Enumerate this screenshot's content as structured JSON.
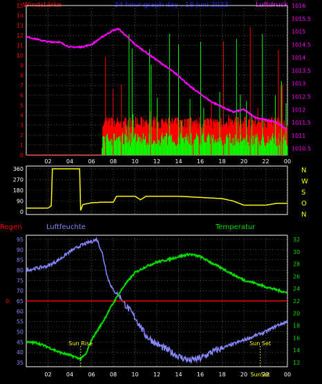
{
  "header": {
    "left_title": "Windstärke",
    "center_title": "24 hour graph day , 18 Juni 2023",
    "right_title": "Luftdruck"
  },
  "colors": {
    "wind": "#ff0000",
    "gust": "#00ff00",
    "pressure": "#ff00ff",
    "direction": "#ffff00",
    "humidity": "#8888ff",
    "temperature": "#00dd00",
    "rain": "#ff0000",
    "axis": "#ffff00"
  },
  "chart_data": [
    {
      "type": "line",
      "name": "wind-pressure",
      "title": "24 hour graph day , 18 Juni 2023",
      "x_ticks": [
        "02",
        "04",
        "06",
        "08",
        "10",
        "12",
        "14",
        "16",
        "18",
        "20",
        "22",
        "00"
      ],
      "left_axis": {
        "label": "Windstärke",
        "ticks": [
          0,
          1,
          2,
          3,
          4,
          5,
          6,
          7,
          8,
          9,
          10,
          11,
          12,
          13,
          14,
          15
        ],
        "ylim": [
          0,
          15
        ]
      },
      "right_axis": {
        "label": "Luftdruck",
        "ticks": [
          "1010.5",
          "1011",
          "1011.5",
          "1012",
          "1012.5",
          "1013",
          "1013.5",
          "1014",
          "1014.5",
          "1015",
          "1015.5",
          "1016"
        ],
        "ylim": [
          1010.25,
          1016
        ]
      },
      "series": [
        {
          "name": "Luftdruck",
          "x": [
            0,
            1,
            2,
            3,
            4,
            5,
            6,
            7,
            8,
            8.5,
            9,
            10,
            11,
            12,
            13,
            14,
            15,
            16,
            17,
            18,
            19,
            20,
            21,
            22,
            23,
            24
          ],
          "values": [
            1014.8,
            1014.7,
            1014.6,
            1014.6,
            1014.4,
            1014.4,
            1014.5,
            1014.8,
            1015.05,
            1015.1,
            1014.9,
            1014.5,
            1014.2,
            1013.9,
            1013.6,
            1013.3,
            1012.9,
            1012.6,
            1012.3,
            1012.1,
            1011.9,
            1012.0,
            1011.7,
            1011.6,
            1011.5,
            1011.2
          ]
        },
        {
          "name": "Windstärke",
          "x": [
            0,
            6.9,
            7,
            8,
            9,
            10,
            11,
            12,
            13,
            14,
            15,
            16,
            17,
            18,
            19,
            20,
            21,
            22,
            23,
            24
          ],
          "values": [
            0,
            0,
            3.5,
            3.5,
            3.5,
            3.5,
            3.5,
            3.5,
            3.5,
            3.5,
            3.5,
            3.5,
            3.5,
            3.5,
            3.5,
            3.5,
            3.5,
            3.5,
            3.5,
            3
          ]
        },
        {
          "name": "Böen",
          "x": [
            0,
            6.9,
            7,
            8,
            9,
            10,
            11,
            12,
            13,
            14,
            15,
            16,
            17,
            18,
            19,
            20,
            21,
            22,
            23,
            24
          ],
          "values": [
            0,
            0,
            1.5,
            1.5,
            1.5,
            1.5,
            1.5,
            1.5,
            1.5,
            1.5,
            1.5,
            1.5,
            1.5,
            1.5,
            1.5,
            1.5,
            1.5,
            1.5,
            1.5,
            1.5
          ]
        }
      ]
    },
    {
      "type": "line",
      "name": "wind-direction",
      "x_ticks": [
        "02",
        "04",
        "06",
        "08",
        "10",
        "12",
        "14",
        "16",
        "18",
        "20",
        "22",
        "00"
      ],
      "left_axis": {
        "ticks": [
          0,
          90,
          180,
          270,
          360
        ],
        "ylim": [
          0,
          360
        ]
      },
      "right_axis": {
        "ticks": [
          "N",
          "W",
          "S",
          "O",
          "N"
        ]
      },
      "series": [
        {
          "name": "Windrichtung",
          "x": [
            0,
            2,
            2.3,
            2.4,
            4.9,
            5,
            5.2,
            6,
            7,
            8,
            8.3,
            10,
            10.5,
            11,
            12,
            14,
            16,
            18,
            19,
            20,
            22,
            23,
            24
          ],
          "values": [
            30,
            30,
            50,
            360,
            360,
            10,
            60,
            75,
            80,
            80,
            130,
            130,
            100,
            130,
            130,
            130,
            120,
            110,
            90,
            55,
            55,
            70,
            70
          ]
        }
      ]
    },
    {
      "type": "line",
      "name": "humidity-temperature",
      "x_ticks": [
        "02",
        "04",
        "06",
        "08",
        "10",
        "12",
        "14",
        "16",
        "18",
        "20",
        "22",
        "00"
      ],
      "labels": {
        "rain": "Regen",
        "humidity": "Luftfeuchte",
        "temperature": "Temperatur"
      },
      "left_axis": {
        "label": "Luftfeuchte",
        "ticks": [
          35,
          40,
          45,
          50,
          55,
          60,
          65,
          70,
          75,
          80,
          85,
          90,
          95
        ],
        "ylim": [
          33,
          97
        ]
      },
      "right_axis": {
        "label": "Temperatur",
        "ticks": [
          12,
          14,
          16,
          18,
          20,
          22,
          24,
          26,
          28,
          30,
          32
        ],
        "ylim": [
          11.33,
          32.67
        ]
      },
      "rain": {
        "value": 0,
        "label": "0"
      },
      "annotations": [
        {
          "text": "Sun Rise",
          "x": 5
        },
        {
          "text": "Sun Set",
          "x": 21.5
        },
        {
          "text": "SunSet",
          "x": 21.5
        }
      ],
      "series": [
        {
          "name": "Luftfeuchte",
          "x": [
            0,
            1,
            2,
            3,
            4,
            5,
            6,
            6.5,
            7,
            7.5,
            8,
            8.5,
            9,
            10,
            11,
            12,
            13,
            14,
            15,
            16,
            17,
            18,
            19,
            20,
            21,
            22,
            23,
            24
          ],
          "values": [
            80,
            81,
            82,
            85,
            89,
            92,
            94,
            95,
            88,
            76,
            70,
            68,
            64,
            57,
            48,
            44,
            41,
            38,
            36,
            37,
            40,
            42,
            44,
            46,
            48,
            50,
            53,
            55
          ]
        },
        {
          "name": "Temperatur",
          "x": [
            0,
            1,
            2,
            3,
            4,
            5,
            5.5,
            6,
            7,
            8,
            9,
            10,
            11,
            12,
            13,
            14,
            15,
            16,
            17,
            18,
            19,
            20,
            21,
            22,
            23,
            24
          ],
          "values": [
            15.3,
            15.2,
            14.5,
            13.7,
            13.2,
            12.6,
            13.4,
            15.7,
            18.5,
            21.7,
            24.5,
            26.6,
            27.6,
            28.3,
            28.7,
            29.2,
            29.6,
            29.2,
            28.2,
            27.3,
            26.3,
            25.4,
            24.9,
            24.3,
            23.8,
            23.3
          ]
        }
      ]
    }
  ]
}
